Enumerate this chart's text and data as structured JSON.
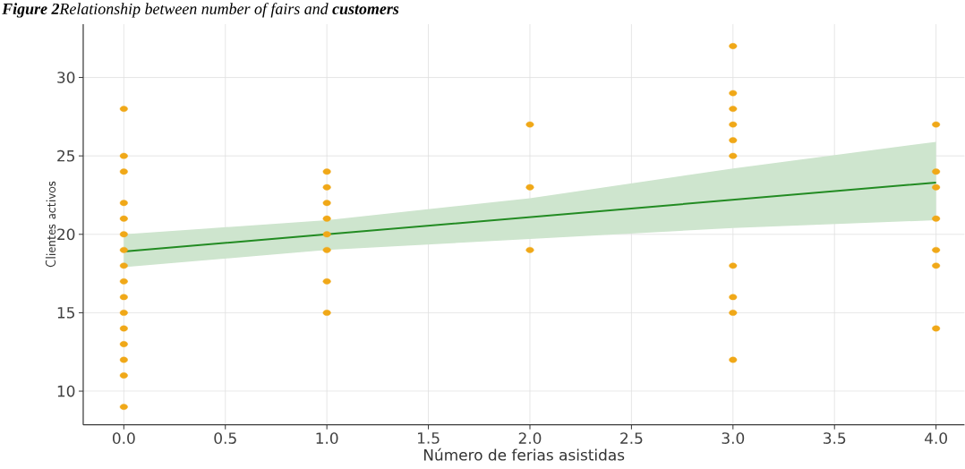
{
  "chart_data": {
    "type": "scatter",
    "title": "**Figure 2**Relationship between number of fairs and **customers**",
    "xlabel": "Número de ferias asistidas",
    "ylabel": "Clientes activos",
    "xlim": [
      -0.2,
      4.14
    ],
    "ylim": [
      7.85,
      33.4
    ],
    "xticks": [
      {
        "value": 0,
        "label": "0.0"
      },
      {
        "value": 0.5,
        "label": "0.5"
      },
      {
        "value": 1,
        "label": "1.0"
      },
      {
        "value": 1.5,
        "label": "1.5"
      },
      {
        "value": 2,
        "label": "2.0"
      },
      {
        "value": 2.5,
        "label": "2.5"
      },
      {
        "value": 3,
        "label": "3.0"
      },
      {
        "value": 3.5,
        "label": "3.5"
      },
      {
        "value": 4,
        "label": "4.0"
      }
    ],
    "yticks": [
      10,
      15,
      20,
      25,
      30
    ],
    "grid": true,
    "series": [
      {
        "marker": "circle",
        "color": "#f0a818",
        "x": [
          0,
          0,
          0,
          0,
          0,
          0,
          0,
          0,
          0,
          0,
          0,
          0,
          0,
          0,
          0,
          0,
          1,
          1,
          1,
          1,
          1,
          1,
          1,
          1,
          2,
          2,
          2,
          3,
          3,
          3,
          3,
          3,
          3,
          3,
          3,
          3,
          3,
          4,
          4,
          4,
          4,
          4,
          4,
          4
        ],
        "values": [
          28,
          25,
          24,
          22,
          21,
          20,
          19,
          18,
          17,
          16,
          15,
          14,
          13,
          12,
          11,
          9,
          24,
          23,
          22,
          21,
          20,
          19,
          17,
          15,
          27,
          23,
          19,
          32,
          29,
          28,
          27,
          26,
          25,
          18,
          16,
          15,
          12,
          27,
          24,
          23,
          21,
          19,
          18,
          14
        ]
      },
      {
        "type": "line",
        "marker": "none",
        "line_style": "solid",
        "color": "#228b22",
        "x": [
          0,
          1,
          2,
          3,
          4
        ],
        "values": [
          18.9,
          20.0,
          21.1,
          22.2,
          23.3
        ],
        "lower": [
          17.9,
          19.0,
          19.7,
          20.4,
          20.9
        ],
        "upper": [
          20.0,
          20.9,
          22.3,
          24.2,
          25.9
        ]
      }
    ]
  }
}
